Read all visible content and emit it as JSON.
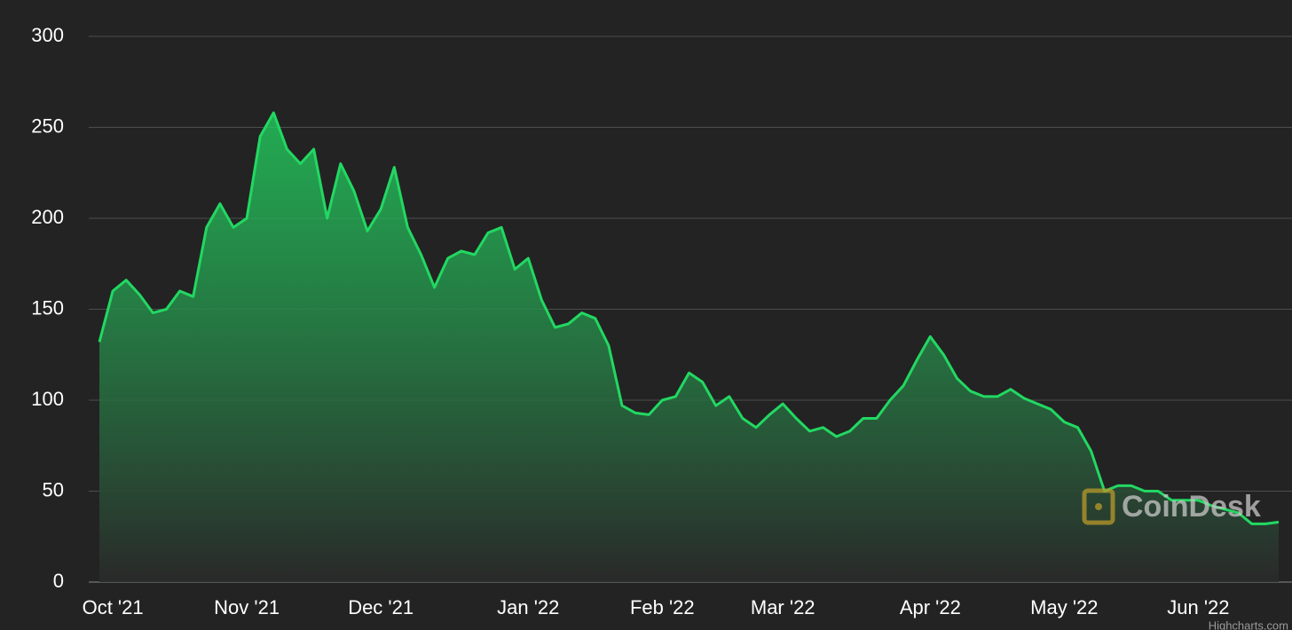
{
  "chart_data": {
    "type": "area",
    "categories": [
      null,
      "Oct '21",
      null,
      null,
      null,
      null,
      null,
      null,
      null,
      null,
      null,
      "Nov '21",
      null,
      null,
      null,
      null,
      null,
      null,
      null,
      null,
      null,
      "Dec '21",
      null,
      null,
      null,
      null,
      null,
      null,
      null,
      null,
      null,
      null,
      "Jan '22",
      null,
      null,
      null,
      null,
      null,
      null,
      null,
      null,
      null,
      "Feb '22",
      null,
      null,
      null,
      null,
      null,
      null,
      null,
      null,
      "Mar '22",
      null,
      null,
      null,
      null,
      null,
      null,
      null,
      null,
      null,
      null,
      "Apr '22",
      null,
      null,
      null,
      null,
      null,
      null,
      null,
      null,
      null,
      "May '22",
      null,
      null,
      null,
      null,
      null,
      null,
      null,
      null,
      null,
      "Jun '22",
      null,
      null,
      null,
      null,
      null,
      null
    ],
    "series": [
      {
        "color": "#22d862",
        "values": [
          132,
          160,
          166,
          158,
          148,
          150,
          160,
          157,
          195,
          208,
          195,
          200,
          245,
          258,
          238,
          230,
          238,
          200,
          230,
          215,
          193,
          205,
          228,
          195,
          180,
          162,
          178,
          182,
          180,
          192,
          195,
          172,
          178,
          155,
          140,
          142,
          148,
          145,
          130,
          97,
          93,
          92,
          100,
          102,
          115,
          110,
          97,
          102,
          90,
          85,
          92,
          98,
          90,
          83,
          85,
          80,
          83,
          90,
          90,
          100,
          108,
          122,
          135,
          125,
          112,
          105,
          102,
          102,
          106,
          101,
          98,
          95,
          88,
          85,
          72,
          50,
          53,
          53,
          50,
          50,
          45,
          45,
          45,
          42,
          40,
          38,
          32,
          32,
          33
        ]
      }
    ],
    "ylim": [
      0,
      300
    ],
    "yticks": [
      0,
      50,
      100,
      150,
      200,
      250,
      300
    ],
    "grid": true,
    "watermark": "CoinDesk",
    "credits": "Highcharts.com"
  }
}
